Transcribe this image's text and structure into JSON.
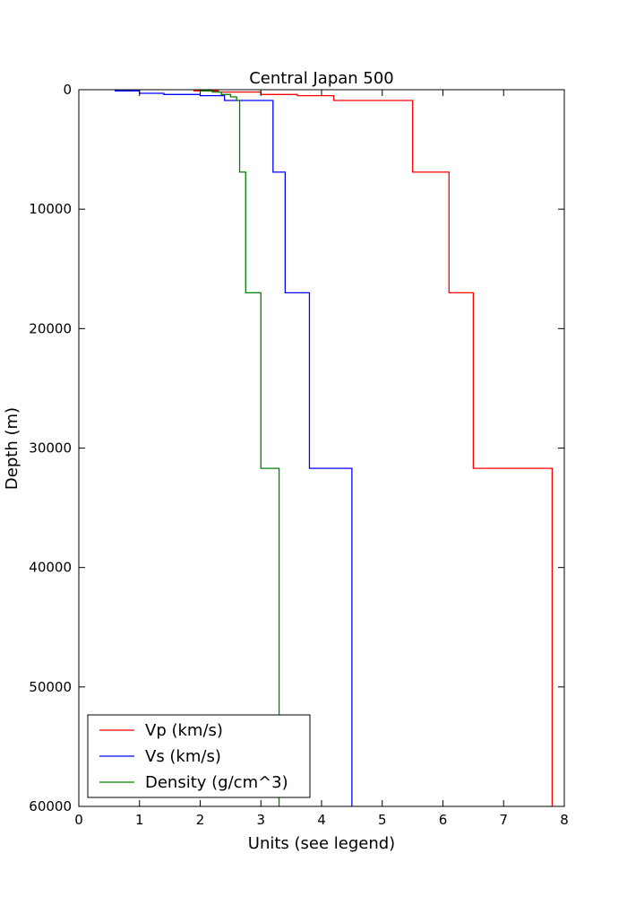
{
  "chart_data": {
    "type": "line",
    "title": "Central Japan 500",
    "xlabel": "Units (see legend)",
    "ylabel": "Depth (m)",
    "xlim": [
      0,
      8
    ],
    "ylim": [
      0,
      60000
    ],
    "y_inverted": true,
    "grid": false,
    "legend_position": "lower-left",
    "x_ticks": [
      "0",
      "1",
      "2",
      "3",
      "4",
      "5",
      "6",
      "7",
      "8"
    ],
    "y_ticks": [
      "0",
      "10000",
      "20000",
      "30000",
      "40000",
      "50000",
      "60000"
    ],
    "series": [
      {
        "name": "Vp (km/s)",
        "color": "#ff0000",
        "points": [
          [
            1.9,
            0
          ],
          [
            1.9,
            100
          ],
          [
            2.3,
            100
          ],
          [
            2.3,
            200
          ],
          [
            3.0,
            200
          ],
          [
            3.0,
            400
          ],
          [
            3.6,
            400
          ],
          [
            3.6,
            500
          ],
          [
            4.2,
            500
          ],
          [
            4.2,
            900
          ],
          [
            5.5,
            900
          ],
          [
            5.5,
            6900
          ],
          [
            6.1,
            6900
          ],
          [
            6.1,
            17000
          ],
          [
            6.5,
            17000
          ],
          [
            6.5,
            31700
          ],
          [
            7.8,
            31700
          ],
          [
            7.8,
            60000
          ]
        ]
      },
      {
        "name": "Vs (km/s)",
        "color": "#0000ff",
        "points": [
          [
            0.6,
            0
          ],
          [
            0.6,
            100
          ],
          [
            1.0,
            100
          ],
          [
            1.0,
            300
          ],
          [
            1.4,
            300
          ],
          [
            1.4,
            400
          ],
          [
            2.0,
            400
          ],
          [
            2.0,
            500
          ],
          [
            2.4,
            500
          ],
          [
            2.4,
            900
          ],
          [
            3.2,
            900
          ],
          [
            3.2,
            6900
          ],
          [
            3.4,
            6900
          ],
          [
            3.4,
            17000
          ],
          [
            3.8,
            17000
          ],
          [
            3.8,
            31700
          ],
          [
            4.5,
            31700
          ],
          [
            4.5,
            60000
          ]
        ]
      },
      {
        "name": "Density (g/cm^3)",
        "color": "#008000",
        "points": [
          [
            2.0,
            0
          ],
          [
            2.0,
            100
          ],
          [
            2.2,
            100
          ],
          [
            2.2,
            200
          ],
          [
            2.35,
            200
          ],
          [
            2.35,
            400
          ],
          [
            2.5,
            400
          ],
          [
            2.5,
            600
          ],
          [
            2.6,
            600
          ],
          [
            2.6,
            900
          ],
          [
            2.65,
            900
          ],
          [
            2.65,
            6900
          ],
          [
            2.75,
            6900
          ],
          [
            2.75,
            17000
          ],
          [
            3.0,
            17000
          ],
          [
            3.0,
            31700
          ],
          [
            3.3,
            31700
          ],
          [
            3.3,
            60000
          ]
        ]
      }
    ]
  }
}
